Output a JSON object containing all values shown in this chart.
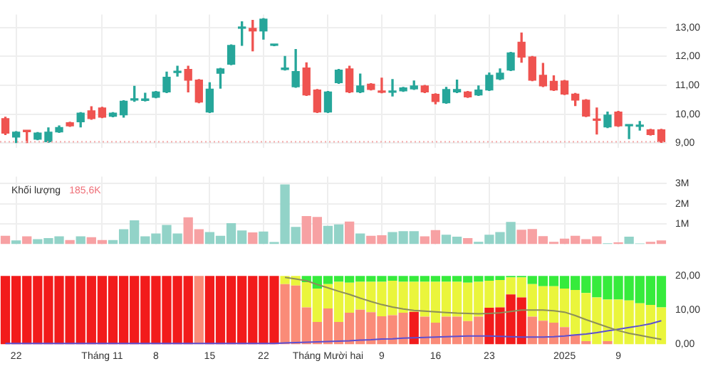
{
  "chart_data": [
    {
      "type": "candlestick",
      "categories": [
        null,
        null,
        null,
        null,
        null,
        null,
        null,
        null,
        null,
        null,
        null,
        null,
        null,
        null,
        null,
        null,
        null,
        null,
        null,
        null,
        null,
        null,
        null,
        null,
        null,
        null,
        null,
        null,
        null,
        null,
        null,
        null,
        null,
        null,
        null,
        null,
        null,
        null,
        null,
        null,
        null,
        null,
        null,
        null,
        null,
        null,
        null,
        null,
        null,
        null,
        null,
        null,
        null,
        null,
        null,
        null,
        null,
        null,
        null,
        null,
        null,
        null
      ],
      "ohlc": [
        [
          9.85,
          9.9,
          9.3,
          9.35
        ],
        [
          9.21,
          9.4,
          9.02,
          9.38
        ],
        [
          9.42,
          9.44,
          9.02,
          9.4
        ],
        [
          9.14,
          9.37,
          9.12,
          9.35
        ],
        [
          9.05,
          9.53,
          9.03,
          9.38
        ],
        [
          9.39,
          9.6,
          9.37,
          9.54
        ],
        [
          9.71,
          9.73,
          9.58,
          9.6
        ],
        [
          9.74,
          10.06,
          9.56,
          10.04
        ],
        [
          10.12,
          10.26,
          9.83,
          9.85
        ],
        [
          10.22,
          10.24,
          9.88,
          9.9
        ],
        [
          9.93,
          10.06,
          9.91,
          10.04
        ],
        [
          9.98,
          10.47,
          9.9,
          10.45
        ],
        [
          10.49,
          10.97,
          10.45,
          10.51
        ],
        [
          10.48,
          10.73,
          10.46,
          10.53
        ],
        [
          10.59,
          10.79,
          10.57,
          10.77
        ],
        [
          10.77,
          11.46,
          10.75,
          11.28
        ],
        [
          11.44,
          11.66,
          11.32,
          11.46
        ],
        [
          11.55,
          11.66,
          10.77,
          11.18
        ],
        [
          11.18,
          11.2,
          10.4,
          10.42
        ],
        [
          10.08,
          11.09,
          10.06,
          10.87
        ],
        [
          11.42,
          11.59,
          10.9,
          11.57
        ],
        [
          11.73,
          12.4,
          11.71,
          12.38
        ],
        [
          12.97,
          13.2,
          12.38,
          12.98
        ],
        [
          12.97,
          13.25,
          12.19,
          12.88
        ],
        [
          12.88,
          13.31,
          12.6,
          13.29
        ],
        [
          12.38,
          12.4,
          12.37,
          12.39
        ],
        [
          11.55,
          12.0,
          11.53,
          11.56
        ],
        [
          10.95,
          12.24,
          10.93,
          11.48
        ],
        [
          11.6,
          11.78,
          10.65,
          10.67
        ],
        [
          10.84,
          10.86,
          10.06,
          10.08
        ],
        [
          10.08,
          10.79,
          10.06,
          10.77
        ],
        [
          11.09,
          11.55,
          11.07,
          11.53
        ],
        [
          11.57,
          11.66,
          10.75,
          10.77
        ],
        [
          10.77,
          11.39,
          10.75,
          10.98
        ],
        [
          11.04,
          11.06,
          10.84,
          10.86
        ],
        [
          10.78,
          11.25,
          10.74,
          10.76
        ],
        [
          10.76,
          11.2,
          10.63,
          10.78
        ],
        [
          10.81,
          10.93,
          10.79,
          10.91
        ],
        [
          10.88,
          11.15,
          10.86,
          10.98
        ],
        [
          10.98,
          11.0,
          10.75,
          10.77
        ],
        [
          10.69,
          10.71,
          10.36,
          10.44
        ],
        [
          10.4,
          10.93,
          10.38,
          10.86
        ],
        [
          10.77,
          11.18,
          10.75,
          10.86
        ],
        [
          10.77,
          10.79,
          10.58,
          10.6
        ],
        [
          10.67,
          10.98,
          10.65,
          10.84
        ],
        [
          10.84,
          11.43,
          10.82,
          11.35
        ],
        [
          11.22,
          11.57,
          11.2,
          11.42
        ],
        [
          11.53,
          12.14,
          11.51,
          12.12
        ],
        [
          12.49,
          12.81,
          11.8,
          11.98
        ],
        [
          11.98,
          12.0,
          11.16,
          11.18
        ],
        [
          11.35,
          11.76,
          10.96,
          10.98
        ],
        [
          11.14,
          11.33,
          10.82,
          10.84
        ],
        [
          11.15,
          11.17,
          10.68,
          10.7
        ],
        [
          10.7,
          10.72,
          10.3,
          10.49
        ],
        [
          10.49,
          10.51,
          9.92,
          9.94
        ],
        [
          9.83,
          10.22,
          9.32,
          9.79
        ],
        [
          9.56,
          10.08,
          9.54,
          9.97
        ],
        [
          10.08,
          10.1,
          9.58,
          9.6
        ],
        [
          9.6,
          9.62,
          9.16,
          9.61
        ],
        [
          9.58,
          9.75,
          9.45,
          9.61
        ],
        [
          9.46,
          9.48,
          9.28,
          9.3
        ],
        [
          9.46,
          9.48,
          9.03,
          9.05
        ]
      ],
      "colors": [
        "#ef5350",
        "#26a69a",
        "#ef5350",
        "#26a69a",
        "#26a69a",
        "#26a69a",
        "#ef5350",
        "#26a69a",
        "#ef5350",
        "#ef5350",
        "#26a69a",
        "#26a69a",
        "#26a69a",
        "#26a69a",
        "#26a69a",
        "#26a69a",
        "#26a69a",
        "#ef5350",
        "#ef5350",
        "#26a69a",
        "#26a69a",
        "#26a69a",
        "#26a69a",
        "#ef5350",
        "#26a69a",
        "#26a69a",
        "#26a69a",
        "#26a69a",
        "#ef5350",
        "#ef5350",
        "#26a69a",
        "#26a69a",
        "#ef5350",
        "#26a69a",
        "#ef5350",
        "#ef5350",
        "#26a69a",
        "#26a69a",
        "#26a69a",
        "#ef5350",
        "#ef5350",
        "#26a69a",
        "#26a69a",
        "#ef5350",
        "#26a69a",
        "#26a69a",
        "#26a69a",
        "#26a69a",
        "#ef5350",
        "#ef5350",
        "#ef5350",
        "#ef5350",
        "#ef5350",
        "#ef5350",
        "#ef5350",
        "#ef5350",
        "#26a69a",
        "#ef5350",
        "#26a69a",
        "#26a69a",
        "#ef5350",
        "#ef5350"
      ],
      "ylim": [
        8.85,
        13.45
      ],
      "yticks": [
        {
          "value": 9,
          "label": "9,00"
        },
        {
          "value": 10,
          "label": "10,00"
        },
        {
          "value": 11,
          "label": "11,00"
        },
        {
          "value": 12,
          "label": "12,00"
        },
        {
          "value": 13,
          "label": "13,00"
        }
      ],
      "grid": true,
      "tick_labels": "y",
      "ref_lines": [
        {
          "axis": "y",
          "value": 9.05,
          "color": "#f4a6a6",
          "line_style": "dotted"
        }
      ]
    },
    {
      "type": "bar",
      "title": "Khối lượng",
      "annotations": [
        "185,6K"
      ],
      "categories": [
        null,
        null,
        null,
        null,
        null,
        null,
        null,
        null,
        null,
        null,
        null,
        null,
        null,
        null,
        null,
        null,
        null,
        null,
        null,
        null,
        null,
        null,
        null,
        null,
        null,
        null,
        null,
        null,
        null,
        null,
        null,
        null,
        null,
        null,
        null,
        null,
        null,
        null,
        null,
        null,
        null,
        null,
        null,
        null,
        null,
        null,
        null,
        null,
        null,
        null,
        null,
        null,
        null,
        null,
        null,
        null,
        null,
        null,
        null,
        null,
        null,
        null
      ],
      "values": [
        0.42,
        0.19,
        0.39,
        0.25,
        0.3,
        0.39,
        0.21,
        0.39,
        0.35,
        0.21,
        0.21,
        0.74,
        1.18,
        0.39,
        0.53,
        0.95,
        0.53,
        1.33,
        0.74,
        0.6,
        0.42,
        1.04,
        0.68,
        0.58,
        0.63,
        0.11,
        2.96,
        0.86,
        1.39,
        1.35,
        0.91,
        0.98,
        1.12,
        0.53,
        0.42,
        0.44,
        0.6,
        0.65,
        0.65,
        0.39,
        0.7,
        0.47,
        0.37,
        0.3,
        0.12,
        0.47,
        0.6,
        1.1,
        0.72,
        0.75,
        0.4,
        0.12,
        0.28,
        0.42,
        0.25,
        0.39,
        0.05,
        0.09,
        0.37,
        0.04,
        0.12,
        0.19
      ],
      "colors": [
        "#f7a1a3",
        "#92d3c8",
        "#f7a1a3",
        "#92d3c8",
        "#92d3c8",
        "#92d3c8",
        "#f7a1a3",
        "#92d3c8",
        "#f7a1a3",
        "#f7a1a3",
        "#92d3c8",
        "#92d3c8",
        "#92d3c8",
        "#92d3c8",
        "#92d3c8",
        "#92d3c8",
        "#92d3c8",
        "#f7a1a3",
        "#f7a1a3",
        "#92d3c8",
        "#92d3c8",
        "#92d3c8",
        "#92d3c8",
        "#f7a1a3",
        "#92d3c8",
        "#92d3c8",
        "#92d3c8",
        "#92d3c8",
        "#f7a1a3",
        "#f7a1a3",
        "#92d3c8",
        "#92d3c8",
        "#f7a1a3",
        "#92d3c8",
        "#f7a1a3",
        "#f7a1a3",
        "#92d3c8",
        "#92d3c8",
        "#92d3c8",
        "#f7a1a3",
        "#f7a1a3",
        "#92d3c8",
        "#92d3c8",
        "#f7a1a3",
        "#92d3c8",
        "#92d3c8",
        "#92d3c8",
        "#92d3c8",
        "#f7a1a3",
        "#f7a1a3",
        "#f7a1a3",
        "#f7a1a3",
        "#f7a1a3",
        "#f7a1a3",
        "#f7a1a3",
        "#f7a1a3",
        "#92d3c8",
        "#f7a1a3",
        "#92d3c8",
        "#92d3c8",
        "#f7a1a3",
        "#f7a1a3"
      ],
      "ylim": [
        0,
        3.35
      ],
      "yticks": [
        {
          "value": 1,
          "label": "1M"
        },
        {
          "value": 2,
          "label": "2M"
        },
        {
          "value": 3,
          "label": "3M"
        }
      ],
      "grid": true,
      "tick_labels": "y"
    },
    {
      "type": "bar",
      "stacked": true,
      "marker": "none",
      "categories": [
        null,
        "22",
        null,
        null,
        null,
        null,
        null,
        null,
        null,
        "Tháng 11",
        null,
        null,
        null,
        null,
        "8",
        null,
        null,
        null,
        null,
        "15",
        null,
        null,
        null,
        null,
        "22",
        null,
        null,
        null,
        null,
        null,
        "Tháng Mười hai",
        null,
        null,
        null,
        null,
        "9",
        null,
        null,
        null,
        null,
        "16",
        null,
        null,
        null,
        null,
        "23",
        null,
        null,
        null,
        null,
        null,
        null,
        "2025",
        null,
        null,
        null,
        null,
        "9",
        null,
        null,
        null,
        null
      ],
      "series": [
        {
          "color": "#f21b1b",
          "values": [
            20,
            20,
            20,
            20,
            20,
            20,
            20,
            20,
            20,
            20,
            20,
            20,
            20,
            20,
            20,
            20,
            20,
            20,
            null,
            20,
            20,
            20,
            20,
            20,
            20,
            20,
            null,
            null,
            null,
            null,
            null,
            null,
            null,
            null,
            null,
            null,
            null,
            null,
            9.5,
            null,
            null,
            null,
            null,
            null,
            null,
            10.7,
            10.8,
            14.6,
            13.7,
            null,
            null,
            null,
            null,
            null,
            null,
            null,
            null,
            null,
            null,
            null,
            null,
            null
          ]
        },
        {
          "color": "#fa8b78",
          "values": [
            null,
            null,
            null,
            null,
            null,
            null,
            null,
            null,
            null,
            null,
            null,
            null,
            null,
            null,
            null,
            null,
            null,
            null,
            20,
            null,
            null,
            null,
            null,
            null,
            null,
            null,
            17.6,
            17.2,
            10.8,
            6.5,
            10.5,
            6.5,
            9.2,
            10.1,
            9.4,
            8.2,
            8.5,
            9.2,
            null,
            8.1,
            6.3,
            8.1,
            8.1,
            6.8,
            8.1,
            null,
            null,
            null,
            null,
            8.1,
            6.9,
            6.3,
            5.0,
            2.9,
            0.9,
            null,
            0.9,
            null,
            null,
            null,
            null,
            null
          ]
        },
        {
          "color": "#eaf53c",
          "values": [
            null,
            null,
            null,
            null,
            null,
            null,
            null,
            null,
            null,
            null,
            null,
            null,
            null,
            null,
            null,
            null,
            null,
            null,
            null,
            null,
            null,
            null,
            null,
            null,
            null,
            null,
            2.4,
            2.8,
            7.4,
            9.8,
            7.1,
            11.8,
            8.8,
            8.2,
            8.9,
            10.1,
            10.1,
            9.1,
            8.8,
            10.2,
            12.0,
            10.2,
            10.2,
            11.2,
            10.2,
            7.9,
            8.0,
            5.0,
            5.9,
            9.5,
            10.1,
            10.7,
            11.3,
            13.0,
            14.1,
            13.7,
            12.2,
            13.1,
            12.8,
            12.0,
            11.5,
            10.8
          ]
        },
        {
          "color": "#36eb3c",
          "values": [
            null,
            null,
            null,
            null,
            null,
            null,
            null,
            null,
            null,
            null,
            null,
            null,
            null,
            null,
            null,
            null,
            null,
            null,
            null,
            null,
            null,
            null,
            null,
            null,
            null,
            null,
            null,
            null,
            1.8,
            3.7,
            2.4,
            1.7,
            2.0,
            1.7,
            1.7,
            1.7,
            1.4,
            1.7,
            1.7,
            1.7,
            1.7,
            1.7,
            1.7,
            2.0,
            1.7,
            1.4,
            1.2,
            0.4,
            0.4,
            2.4,
            3.0,
            3.0,
            3.7,
            4.1,
            5.0,
            6.3,
            6.9,
            6.9,
            7.2,
            8.0,
            8.5,
            9.2
          ]
        },
        {
          "type": "line",
          "color": "#8c8f5a",
          "values": [
            null,
            null,
            null,
            null,
            null,
            null,
            null,
            null,
            null,
            null,
            null,
            null,
            null,
            null,
            null,
            null,
            null,
            null,
            null,
            null,
            null,
            null,
            null,
            null,
            null,
            null,
            19.6,
            19.1,
            18.6,
            17.5,
            16.5,
            15.5,
            14.6,
            13.5,
            12.5,
            11.6,
            10.9,
            10.3,
            9.9,
            9.7,
            9.5,
            9.3,
            9.1,
            9.0,
            8.9,
            9.0,
            9.2,
            9.6,
            10.0,
            10.0,
            10.0,
            9.8,
            9.4,
            8.4,
            7.2,
            6.1,
            5.0,
            4.0,
            3.2,
            2.6,
            2.0,
            1.4
          ]
        },
        {
          "type": "line",
          "color": "#5b4fd1",
          "values": [
            0.2,
            0.2,
            0.2,
            0.2,
            0.2,
            0.2,
            0.2,
            0.2,
            0.2,
            0.2,
            0.2,
            0.2,
            0.2,
            0.2,
            0.2,
            0.2,
            0.2,
            0.2,
            0.2,
            0.2,
            0.2,
            0.2,
            0.2,
            0.2,
            0.2,
            0.2,
            0.4,
            0.5,
            0.6,
            0.7,
            0.8,
            0.9,
            1.0,
            1.2,
            1.3,
            1.5,
            1.6,
            1.8,
            1.9,
            2.0,
            2.1,
            2.2,
            2.3,
            2.4,
            2.4,
            2.4,
            2.3,
            2.2,
            2.1,
            2.1,
            2.1,
            2.2,
            2.4,
            2.7,
            3.0,
            3.4,
            3.9,
            4.4,
            4.9,
            5.4,
            6.0,
            6.9
          ]
        }
      ],
      "ylim": [
        -0.6,
        20.8
      ],
      "yticks": [
        {
          "value": 0,
          "label": "0,00"
        },
        {
          "value": 10,
          "label": "10,00"
        },
        {
          "value": 20,
          "label": "20,00"
        }
      ]
    }
  ]
}
